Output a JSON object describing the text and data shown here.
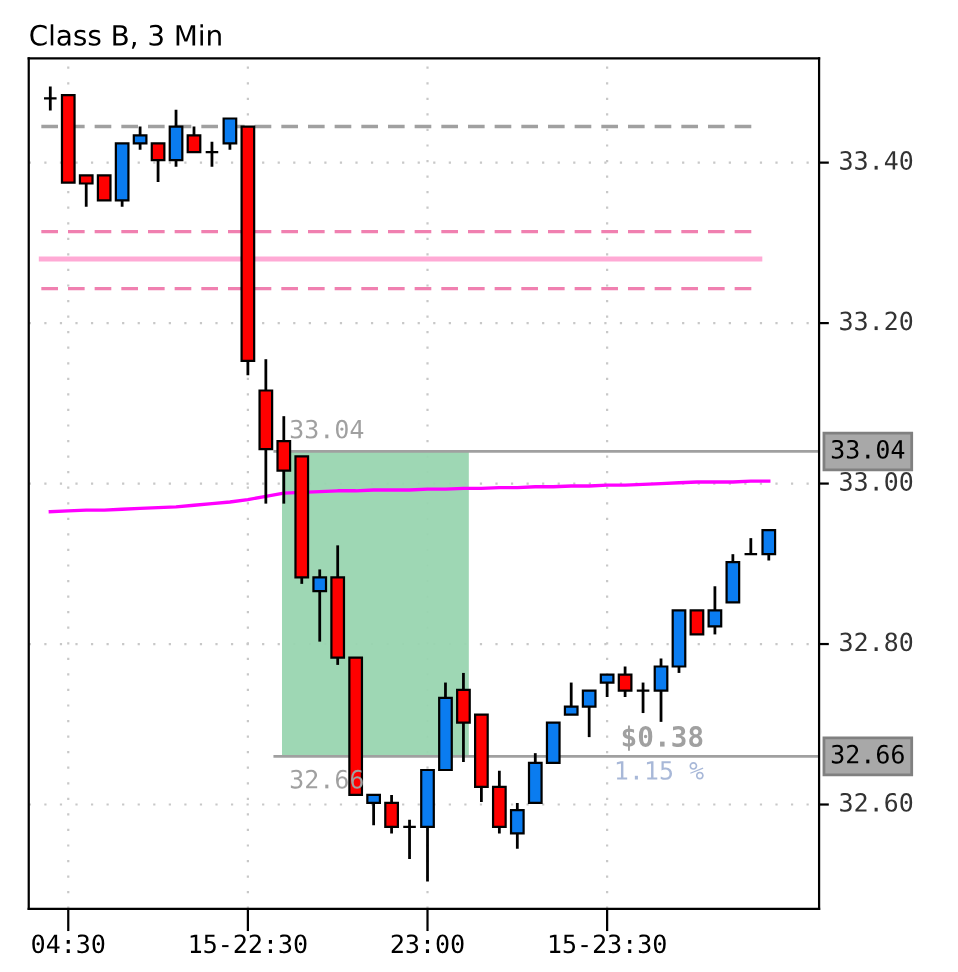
{
  "chart_data": {
    "type": "candlestick",
    "title": "Class B, 3 Min",
    "categories": [
      null,
      "04:30",
      null,
      null,
      null,
      null,
      null,
      null,
      null,
      null,
      null,
      "15-22:30",
      null,
      null,
      null,
      null,
      null,
      null,
      null,
      null,
      null,
      "23:00",
      null,
      null,
      null,
      null,
      null,
      null,
      null,
      null,
      null,
      "15-23:30",
      null,
      null,
      null,
      null,
      null,
      null,
      null,
      null,
      null
    ],
    "ohlc": [
      [
        33.48,
        33.495,
        33.465,
        33.48
      ],
      [
        33.484,
        33.484,
        33.375,
        33.375
      ],
      [
        33.384,
        33.384,
        33.345,
        33.374
      ],
      [
        33.384,
        33.384,
        33.353,
        33.353
      ],
      [
        33.353,
        33.424,
        33.345,
        33.424
      ],
      [
        33.424,
        33.445,
        33.416,
        33.434
      ],
      [
        33.424,
        33.424,
        33.376,
        33.403
      ],
      [
        33.403,
        33.466,
        33.395,
        33.445
      ],
      [
        33.434,
        33.445,
        33.413,
        33.413
      ],
      [
        33.413,
        33.426,
        33.395,
        33.413
      ],
      [
        33.424,
        33.455,
        33.416,
        33.455
      ],
      [
        33.445,
        33.445,
        33.135,
        33.153
      ],
      [
        33.116,
        33.155,
        32.975,
        33.043
      ],
      [
        33.053,
        33.084,
        32.975,
        33.016
      ],
      [
        33.034,
        33.034,
        32.875,
        32.883
      ],
      [
        32.866,
        32.893,
        32.803,
        32.883
      ],
      [
        32.883,
        32.923,
        32.774,
        32.783
      ],
      [
        32.783,
        32.783,
        32.612,
        32.612
      ],
      [
        32.602,
        32.612,
        32.574,
        32.612
      ],
      [
        32.602,
        32.612,
        32.564,
        32.572
      ],
      [
        32.572,
        32.581,
        32.532,
        32.572
      ],
      [
        32.572,
        32.643,
        32.504,
        32.643
      ],
      [
        32.643,
        32.752,
        32.643,
        32.733
      ],
      [
        32.743,
        32.764,
        32.653,
        32.702
      ],
      [
        32.712,
        32.712,
        32.603,
        32.622
      ],
      [
        32.622,
        32.642,
        32.564,
        32.572
      ],
      [
        32.564,
        32.602,
        32.545,
        32.593
      ],
      [
        32.602,
        32.664,
        32.602,
        32.652
      ],
      [
        32.652,
        32.702,
        32.652,
        32.702
      ],
      [
        32.712,
        32.752,
        32.712,
        32.722
      ],
      [
        32.722,
        32.742,
        32.684,
        32.742
      ],
      [
        32.752,
        32.762,
        32.734,
        32.762
      ],
      [
        32.762,
        32.772,
        32.734,
        32.742
      ],
      [
        32.742,
        32.752,
        32.714,
        32.742
      ],
      [
        32.742,
        32.782,
        32.703,
        32.772
      ],
      [
        32.772,
        32.842,
        32.764,
        32.842
      ],
      [
        32.842,
        32.842,
        32.812,
        32.812
      ],
      [
        32.822,
        32.872,
        32.812,
        32.842
      ],
      [
        32.852,
        32.912,
        32.852,
        32.902
      ],
      [
        32.912,
        32.932,
        32.912,
        32.912
      ],
      [
        32.912,
        32.942,
        32.904,
        32.942
      ]
    ],
    "colors": [
      "#000000",
      "#ff0000",
      "#ff0000",
      "#ff0000",
      "#0a7cf0",
      "#0a7cf0",
      "#ff0000",
      "#0a7cf0",
      "#ff0000",
      "#000000",
      "#0a7cf0",
      "#ff0000",
      "#ff0000",
      "#ff0000",
      "#ff0000",
      "#0a7cf0",
      "#ff0000",
      "#ff0000",
      "#0a7cf0",
      "#ff0000",
      "#000000",
      "#0a7cf0",
      "#0a7cf0",
      "#ff0000",
      "#ff0000",
      "#ff0000",
      "#0a7cf0",
      "#0a7cf0",
      "#0a7cf0",
      "#0a7cf0",
      "#0a7cf0",
      "#0a7cf0",
      "#ff0000",
      "#000000",
      "#0a7cf0",
      "#0a7cf0",
      "#ff0000",
      "#0a7cf0",
      "#0a7cf0",
      "#000000",
      "#0a7cf0"
    ],
    "series": [
      {
        "type": "line",
        "color": "#ff00ff",
        "values": [
          32.965,
          32.966,
          32.967,
          32.967,
          32.968,
          32.969,
          32.97,
          32.971,
          32.973,
          32.975,
          32.977,
          32.98,
          32.984,
          32.988,
          32.989,
          32.99,
          32.991,
          32.991,
          32.992,
          32.992,
          32.992,
          32.993,
          32.993,
          32.994,
          32.994,
          32.995,
          32.995,
          32.996,
          32.996,
          32.997,
          32.997,
          32.998,
          32.998,
          32.999,
          33.0,
          33.001,
          33.002,
          33.002,
          33.002,
          33.003,
          33.003
        ]
      }
    ],
    "ylim": [
      32.47,
      33.53
    ],
    "yticks": [
      {
        "value": 32.6,
        "label": "32.60"
      },
      {
        "value": 32.8,
        "label": "32.80"
      },
      {
        "value": 33.0,
        "label": "33.00"
      },
      {
        "value": 33.2,
        "label": "33.20"
      },
      {
        "value": 33.4,
        "label": "33.40"
      }
    ],
    "ref_lines": [
      {
        "axis": "y",
        "value": 33.445,
        "color": "#a0a0a0",
        "line_style": "dashed"
      },
      {
        "axis": "y",
        "value": 33.314,
        "color": "#f080b0",
        "line_style": "dashed"
      },
      {
        "axis": "y",
        "value": 33.28,
        "color": "#ffaad5",
        "line_style": "solid"
      },
      {
        "axis": "y",
        "value": 33.243,
        "color": "#f080b0",
        "line_style": "dashed"
      },
      {
        "axis": "y",
        "value": 33.04,
        "label": "33.04",
        "color": "#a0a0a0",
        "line_style": "solid"
      },
      {
        "axis": "y",
        "value": 32.66,
        "label": "32.66",
        "color": "#a0a0a0",
        "line_style": "solid"
      }
    ],
    "bands": [
      {
        "axis": "y",
        "from": 32.66,
        "to": 33.04,
        "color": "#99d5b0"
      }
    ],
    "annotations": [
      {
        "text": "33.04",
        "y": 33.04
      },
      {
        "text": "32.66",
        "y": 32.66
      },
      "$0.38",
      "1.15 %"
    ],
    "grid": true
  }
}
